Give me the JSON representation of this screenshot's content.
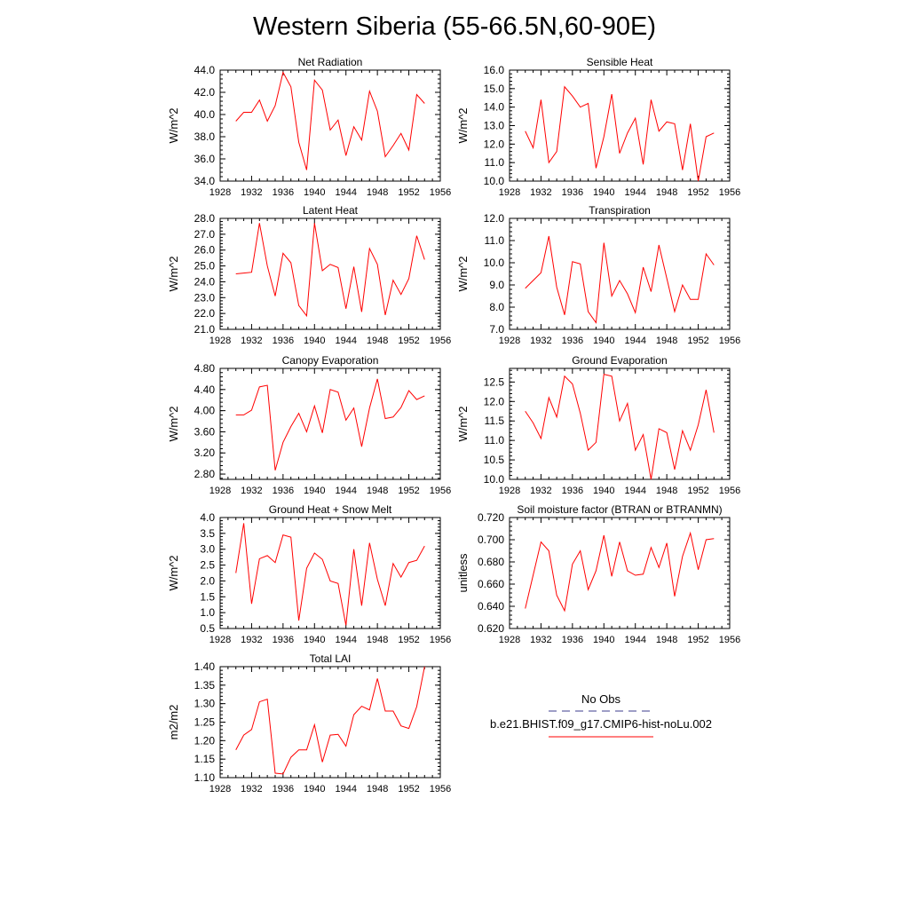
{
  "page": {
    "title": "Western Siberia (55-66.5N,60-90E)"
  },
  "legend": {
    "obs_label": "No Obs",
    "obs_color": "#3c3c8c",
    "model_label": "b.e21.BHIST.f09_g17.CMIP6-hist-noLu.002",
    "model_color": "#ff0000"
  },
  "chart_data": [
    {
      "type": "line",
      "title": "Net Radiation",
      "ylabel": "W/m^2",
      "xlim": [
        1928,
        1956
      ],
      "xticks": [
        1928,
        1932,
        1936,
        1940,
        1944,
        1948,
        1952,
        1956
      ],
      "ylim": [
        34.0,
        44.0
      ],
      "yticks": [
        "34.0",
        "36.0",
        "38.0",
        "40.0",
        "42.0",
        "44.0"
      ],
      "x": [
        1930,
        1931,
        1932,
        1933,
        1934,
        1935,
        1936,
        1937,
        1938,
        1939,
        1940,
        1941,
        1942,
        1943,
        1944,
        1945,
        1946,
        1947,
        1948,
        1949,
        1950,
        1951,
        1952,
        1953,
        1954
      ],
      "series": [
        {
          "values": [
            39.4,
            40.2,
            40.2,
            41.3,
            39.4,
            40.8,
            43.8,
            42.5,
            37.5,
            35.0,
            43.1,
            42.2,
            38.6,
            39.5,
            36.3,
            38.9,
            37.7,
            42.1,
            40.3,
            36.2,
            37.2,
            38.3,
            36.8,
            41.8,
            41.0
          ]
        }
      ],
      "color": "#ff0000"
    },
    {
      "type": "line",
      "title": "Sensible Heat",
      "ylabel": "W/m^2",
      "xlim": [
        1928,
        1956
      ],
      "xticks": [
        1928,
        1932,
        1936,
        1940,
        1944,
        1948,
        1952,
        1956
      ],
      "ylim": [
        10.0,
        16.0
      ],
      "yticks": [
        "10.0",
        "11.0",
        "12.0",
        "13.0",
        "14.0",
        "15.0",
        "16.0"
      ],
      "x": [
        1930,
        1931,
        1932,
        1933,
        1934,
        1935,
        1936,
        1937,
        1938,
        1939,
        1940,
        1941,
        1942,
        1943,
        1944,
        1945,
        1946,
        1947,
        1948,
        1949,
        1950,
        1951,
        1952,
        1953,
        1954
      ],
      "series": [
        {
          "values": [
            12.7,
            11.8,
            14.4,
            11.0,
            11.6,
            15.1,
            14.6,
            14.0,
            14.2,
            10.7,
            12.4,
            14.7,
            11.5,
            12.6,
            13.4,
            10.9,
            14.4,
            12.7,
            13.2,
            13.1,
            10.6,
            13.1,
            10.0,
            12.4,
            12.6
          ]
        }
      ],
      "color": "#ff0000"
    },
    {
      "type": "line",
      "title": "Latent Heat",
      "ylabel": "W/m^2",
      "xlim": [
        1928,
        1956
      ],
      "xticks": [
        1928,
        1932,
        1936,
        1940,
        1944,
        1948,
        1952,
        1956
      ],
      "ylim": [
        21.0,
        28.0
      ],
      "yticks": [
        "21.0",
        "22.0",
        "23.0",
        "24.0",
        "25.0",
        "26.0",
        "27.0",
        "28.0"
      ],
      "x": [
        1930,
        1931,
        1932,
        1933,
        1934,
        1935,
        1936,
        1937,
        1938,
        1939,
        1940,
        1941,
        1942,
        1943,
        1944,
        1945,
        1946,
        1947,
        1948,
        1949,
        1950,
        1951,
        1952,
        1953,
        1954
      ],
      "series": [
        {
          "values": [
            24.5,
            24.55,
            24.6,
            27.7,
            25.0,
            23.1,
            25.8,
            25.2,
            22.5,
            21.85,
            27.7,
            24.7,
            25.1,
            24.9,
            22.3,
            24.95,
            22.1,
            26.1,
            25.1,
            21.9,
            24.1,
            23.2,
            24.2,
            26.9,
            25.4
          ]
        }
      ],
      "color": "#ff0000"
    },
    {
      "type": "line",
      "title": "Transpiration",
      "ylabel": "W/m^2",
      "xlim": [
        1928,
        1956
      ],
      "xticks": [
        1928,
        1932,
        1936,
        1940,
        1944,
        1948,
        1952,
        1956
      ],
      "ylim": [
        7.0,
        12.0
      ],
      "yticks": [
        "7.0",
        "8.0",
        "9.0",
        "10.0",
        "11.0",
        "12.0"
      ],
      "x": [
        1930,
        1931,
        1932,
        1933,
        1934,
        1935,
        1936,
        1937,
        1938,
        1939,
        1940,
        1941,
        1942,
        1943,
        1944,
        1945,
        1946,
        1947,
        1948,
        1949,
        1950,
        1951,
        1952,
        1953,
        1954
      ],
      "series": [
        {
          "values": [
            8.85,
            9.2,
            9.55,
            11.2,
            8.9,
            7.65,
            10.05,
            9.95,
            7.8,
            7.3,
            10.9,
            8.5,
            9.2,
            8.6,
            7.75,
            9.8,
            8.7,
            10.8,
            9.3,
            7.8,
            9.0,
            8.35,
            8.35,
            10.4,
            9.9
          ]
        }
      ],
      "color": "#ff0000"
    },
    {
      "type": "line",
      "title": "Canopy Evaporation",
      "ylabel": "W/m^2",
      "xlim": [
        1928,
        1956
      ],
      "xticks": [
        1928,
        1932,
        1936,
        1940,
        1944,
        1948,
        1952,
        1956
      ],
      "ylim": [
        2.7,
        4.8
      ],
      "yticks": [
        "2.80",
        "3.20",
        "3.60",
        "4.00",
        "4.40",
        "4.80"
      ],
      "x": [
        1930,
        1931,
        1932,
        1933,
        1934,
        1935,
        1936,
        1937,
        1938,
        1939,
        1940,
        1941,
        1942,
        1943,
        1944,
        1945,
        1946,
        1947,
        1948,
        1949,
        1950,
        1951,
        1952,
        1953,
        1954
      ],
      "series": [
        {
          "values": [
            3.92,
            3.92,
            4.01,
            4.45,
            4.48,
            2.87,
            3.4,
            3.7,
            3.95,
            3.6,
            4.09,
            3.58,
            4.4,
            4.35,
            3.82,
            4.05,
            3.32,
            4.05,
            4.6,
            3.85,
            3.88,
            4.06,
            4.38,
            4.21,
            4.28
          ]
        }
      ],
      "color": "#ff0000"
    },
    {
      "type": "line",
      "title": "Ground Evaporation",
      "ylabel": "W/m^2",
      "xlim": [
        1928,
        1956
      ],
      "xticks": [
        1928,
        1932,
        1936,
        1940,
        1944,
        1948,
        1952,
        1956
      ],
      "ylim": [
        10.0,
        12.85
      ],
      "yticks": [
        "10.0",
        "10.5",
        "11.0",
        "11.5",
        "12.0",
        "12.5"
      ],
      "x": [
        1930,
        1931,
        1932,
        1933,
        1934,
        1935,
        1936,
        1937,
        1938,
        1939,
        1940,
        1941,
        1942,
        1943,
        1944,
        1945,
        1946,
        1947,
        1948,
        1949,
        1950,
        1951,
        1952,
        1953,
        1954
      ],
      "series": [
        {
          "values": [
            11.75,
            11.45,
            11.05,
            12.1,
            11.6,
            12.65,
            12.45,
            11.7,
            10.75,
            10.95,
            12.7,
            12.65,
            11.5,
            11.95,
            10.75,
            11.15,
            10.0,
            11.3,
            11.2,
            10.25,
            11.25,
            10.75,
            11.4,
            12.3,
            11.2
          ]
        }
      ],
      "color": "#ff0000"
    },
    {
      "type": "line",
      "title": "Ground Heat + Snow Melt",
      "ylabel": "W/m^2",
      "xlim": [
        1928,
        1956
      ],
      "xticks": [
        1928,
        1932,
        1936,
        1940,
        1944,
        1948,
        1952,
        1956
      ],
      "ylim": [
        0.5,
        4.0
      ],
      "yticks": [
        "0.5",
        "1.0",
        "1.5",
        "2.0",
        "2.5",
        "3.0",
        "3.5",
        "4.0"
      ],
      "x": [
        1930,
        1931,
        1932,
        1933,
        1934,
        1935,
        1936,
        1937,
        1938,
        1939,
        1940,
        1941,
        1942,
        1943,
        1944,
        1945,
        1946,
        1947,
        1948,
        1949,
        1950,
        1951,
        1952,
        1953,
        1954
      ],
      "series": [
        {
          "values": [
            2.25,
            3.82,
            1.28,
            2.7,
            2.8,
            2.58,
            3.45,
            3.38,
            0.75,
            2.4,
            2.88,
            2.68,
            2.0,
            1.92,
            0.6,
            3.0,
            1.22,
            3.2,
            2.05,
            1.22,
            2.55,
            2.12,
            2.58,
            2.65,
            3.1
          ]
        }
      ],
      "color": "#ff0000"
    },
    {
      "type": "line",
      "title": "Soil moisture factor (BTRAN or BTRANMN)",
      "ylabel": "unitless",
      "xlim": [
        1928,
        1956
      ],
      "xticks": [
        1928,
        1932,
        1936,
        1940,
        1944,
        1948,
        1952,
        1956
      ],
      "ylim": [
        0.62,
        0.72
      ],
      "yticks": [
        "0.620",
        "0.640",
        "0.660",
        "0.680",
        "0.700",
        "0.720"
      ],
      "x": [
        1930,
        1931,
        1932,
        1933,
        1934,
        1935,
        1936,
        1937,
        1938,
        1939,
        1940,
        1941,
        1942,
        1943,
        1944,
        1945,
        1946,
        1947,
        1948,
        1949,
        1950,
        1951,
        1952,
        1953,
        1954
      ],
      "series": [
        {
          "values": [
            0.638,
            0.668,
            0.698,
            0.69,
            0.65,
            0.636,
            0.678,
            0.69,
            0.655,
            0.672,
            0.704,
            0.667,
            0.698,
            0.672,
            0.668,
            0.669,
            0.693,
            0.675,
            0.697,
            0.649,
            0.685,
            0.706,
            0.673,
            0.7,
            0.701
          ]
        }
      ],
      "color": "#ff0000"
    },
    {
      "type": "line",
      "title": "Total LAI",
      "ylabel": "m2/m2",
      "xlim": [
        1928,
        1956
      ],
      "xticks": [
        1928,
        1932,
        1936,
        1940,
        1944,
        1948,
        1952,
        1956
      ],
      "ylim": [
        1.1,
        1.4
      ],
      "yticks": [
        "1.10",
        "1.15",
        "1.20",
        "1.25",
        "1.30",
        "1.35",
        "1.40"
      ],
      "x": [
        1930,
        1931,
        1932,
        1933,
        1934,
        1935,
        1936,
        1937,
        1938,
        1939,
        1940,
        1941,
        1942,
        1943,
        1944,
        1945,
        1946,
        1947,
        1948,
        1949,
        1950,
        1951,
        1952,
        1953,
        1954
      ],
      "series": [
        {
          "values": [
            1.175,
            1.215,
            1.23,
            1.305,
            1.312,
            1.112,
            1.11,
            1.155,
            1.175,
            1.175,
            1.243,
            1.142,
            1.215,
            1.217,
            1.185,
            1.27,
            1.293,
            1.283,
            1.368,
            1.28,
            1.28,
            1.24,
            1.233,
            1.292,
            1.4
          ]
        }
      ],
      "color": "#ff0000"
    }
  ]
}
